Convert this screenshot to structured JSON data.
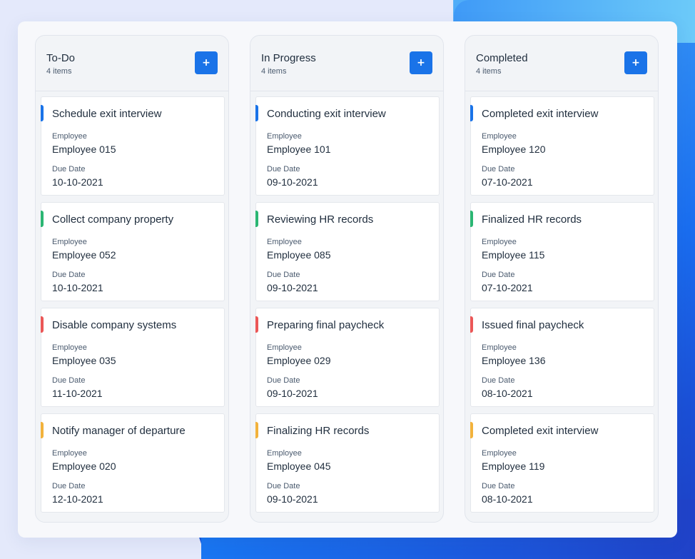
{
  "colors": {
    "accent": "#1a73e8",
    "card_stripes": [
      "#1a73e8",
      "#2bb673",
      "#eb5757",
      "#f2b23c"
    ]
  },
  "field_labels": {
    "employee": "Employee",
    "due_date": "Due Date"
  },
  "add_button_label": "+",
  "columns": [
    {
      "title": "To-Do",
      "count": "4 items",
      "cards": [
        {
          "title": "Schedule exit interview",
          "employee": "Employee 015",
          "due_date": "10-10-2021",
          "stripe": "#1a73e8"
        },
        {
          "title": "Collect company property",
          "employee": "Employee 052",
          "due_date": "10-10-2021",
          "stripe": "#2bb673"
        },
        {
          "title": "Disable company systems",
          "employee": "Employee 035",
          "due_date": "11-10-2021",
          "stripe": "#eb5757"
        },
        {
          "title": "Notify manager of departure",
          "employee": "Employee 020",
          "due_date": "12-10-2021",
          "stripe": "#f2b23c"
        }
      ]
    },
    {
      "title": "In Progress",
      "count": "4 items",
      "cards": [
        {
          "title": "Conducting exit interview",
          "employee": "Employee 101",
          "due_date": "09-10-2021",
          "stripe": "#1a73e8"
        },
        {
          "title": "Reviewing HR records",
          "employee": "Employee 085",
          "due_date": "09-10-2021",
          "stripe": "#2bb673"
        },
        {
          "title": "Preparing final paycheck",
          "employee": "Employee 029",
          "due_date": "09-10-2021",
          "stripe": "#eb5757"
        },
        {
          "title": "Finalizing HR records",
          "employee": "Employee 045",
          "due_date": "09-10-2021",
          "stripe": "#f2b23c"
        }
      ]
    },
    {
      "title": "Completed",
      "count": "4 items",
      "cards": [
        {
          "title": "Completed exit interview",
          "employee": "Employee 120",
          "due_date": "07-10-2021",
          "stripe": "#1a73e8"
        },
        {
          "title": "Finalized HR records",
          "employee": "Employee 115",
          "due_date": "07-10-2021",
          "stripe": "#2bb673"
        },
        {
          "title": "Issued final paycheck",
          "employee": "Employee 136",
          "due_date": "08-10-2021",
          "stripe": "#eb5757"
        },
        {
          "title": "Completed exit interview",
          "employee": "Employee 119",
          "due_date": "08-10-2021",
          "stripe": "#f2b23c"
        }
      ]
    }
  ]
}
